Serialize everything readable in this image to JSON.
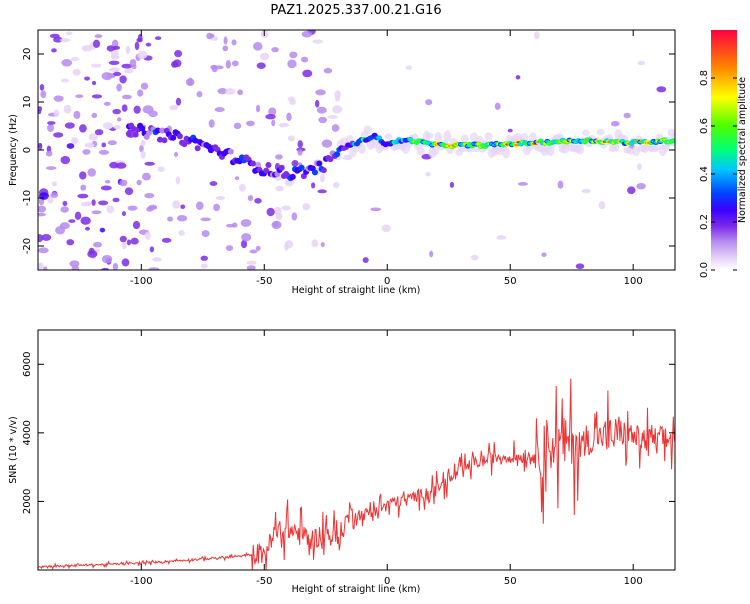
{
  "chart_data": [
    {
      "type": "heatmap",
      "title": "PAZ1.2025.337.00.21.G16",
      "xlabel": "Height of straight line (km)",
      "ylabel": "Frequency (Hz)",
      "xlim": [
        -142,
        117
      ],
      "ylim": [
        -25,
        25
      ],
      "xticks": [
        -100,
        -50,
        0,
        50,
        100
      ],
      "xtick_labels": [
        "-100",
        "-50",
        "0",
        "50",
        "100"
      ],
      "yticks": [
        20,
        10,
        0,
        -10,
        -20
      ],
      "ytick_labels": [
        "20",
        "10",
        "0",
        "-10",
        "-20"
      ],
      "colorbar": {
        "label": "Normalized spectral amplitude",
        "range": [
          0,
          1
        ],
        "ticks": [
          0.0,
          0.2,
          0.4,
          0.6,
          0.8
        ],
        "tick_labels": [
          "0.0",
          "0.2",
          "0.4",
          "0.6",
          "0.8"
        ],
        "colormap": [
          "#ffffff",
          "#e6d3f7",
          "#b68af0",
          "#7d2ce8",
          "#3c00ff",
          "#0044ff",
          "#00c8ff",
          "#00ff7a",
          "#4cff00",
          "#ffff00",
          "#ff8000",
          "#ff0040"
        ]
      },
      "ridge": {
        "description_points_x_km": [
          -100,
          -90,
          -80,
          -70,
          -60,
          -50,
          -40,
          -30,
          -25,
          -20,
          -15,
          -10,
          -5,
          0,
          5,
          10,
          20,
          40,
          60,
          80,
          100,
          117
        ],
        "frequency_hz": [
          4,
          3,
          2,
          0,
          -2,
          -4,
          -5,
          -4,
          -3,
          0,
          1,
          2,
          3,
          1,
          2,
          2,
          1,
          1,
          1.5,
          2,
          1.5,
          2
        ]
      }
    },
    {
      "type": "line",
      "xlabel": "Height of straight line (km)",
      "ylabel": "SNR (10 * v/v)",
      "xlim": [
        -142,
        117
      ],
      "ylim": [
        0,
        7000
      ],
      "xticks": [
        -100,
        -50,
        0,
        50,
        100
      ],
      "xtick_labels": [
        "-100",
        "-50",
        "0",
        "50",
        "100"
      ],
      "yticks": [
        2000,
        4000,
        6000
      ],
      "ytick_labels": [
        "2000",
        "4000",
        "6000"
      ],
      "series": [
        {
          "name": "SNR",
          "color": "#ee3333",
          "x": [
            -142,
            -120,
            -100,
            -80,
            -60,
            -50,
            -45,
            -40,
            -35,
            -30,
            -25,
            -20,
            -15,
            -10,
            0,
            10,
            20,
            25,
            30,
            35,
            40,
            45,
            50,
            55,
            60,
            63,
            65,
            70,
            75,
            80,
            85,
            90,
            95,
            100,
            105,
            110,
            117
          ],
          "y": [
            100,
            150,
            200,
            300,
            400,
            500,
            1100,
            1200,
            1000,
            900,
            1100,
            900,
            1700,
            1600,
            1900,
            2100,
            2400,
            2600,
            2900,
            3100,
            3200,
            3300,
            3300,
            3300,
            3350,
            3400,
            3700,
            3600,
            3800,
            3700,
            3900,
            3900,
            4000,
            3900,
            3750,
            3800,
            3850
          ]
        }
      ]
    }
  ]
}
